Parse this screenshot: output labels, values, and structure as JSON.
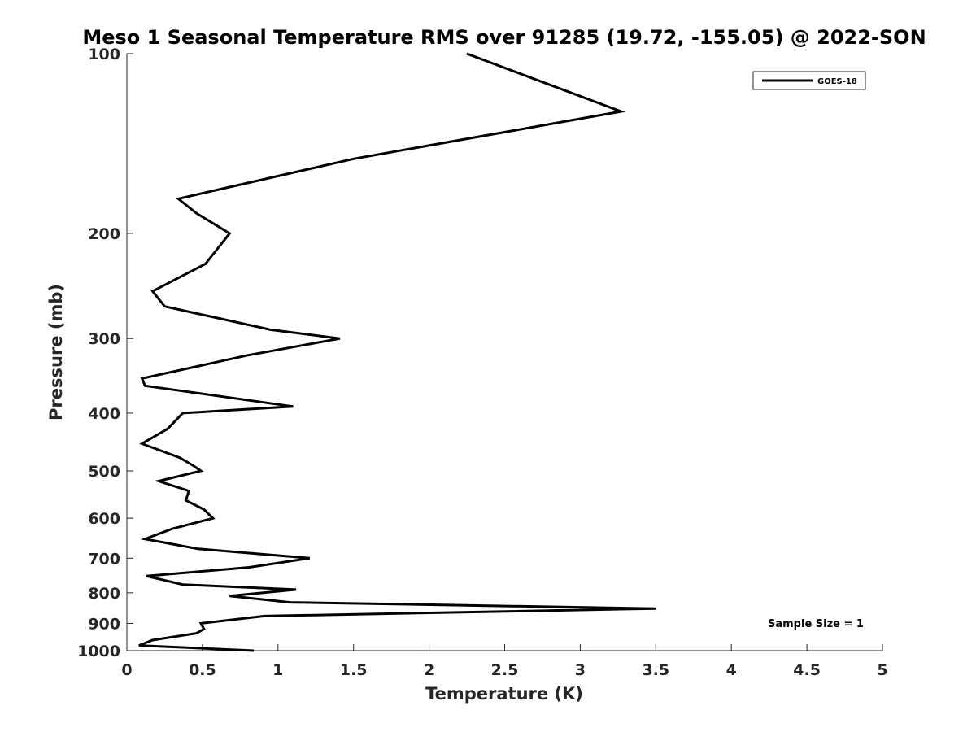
{
  "chart_data": {
    "type": "line",
    "title": "Meso 1 Seasonal Temperature RMS over 91285 (19.72, -155.05) @ 2022-SON",
    "xlabel": "Temperature (K)",
    "ylabel": "Pressure (mb)",
    "xlim": [
      0,
      5
    ],
    "ylim": [
      100,
      1000
    ],
    "y_scale": "log",
    "y_reversed": true,
    "grid": false,
    "legend_position": "top-right",
    "x_ticks": [
      "0",
      "0.5",
      "1",
      "1.5",
      "2",
      "2.5",
      "3",
      "3.5",
      "4",
      "4.5",
      "5"
    ],
    "y_ticks": [
      "100",
      "200",
      "300",
      "400",
      "500",
      "600",
      "700",
      "800",
      "900",
      "1000"
    ],
    "series": [
      {
        "name": "GOES-18",
        "color": "#000000",
        "x": [
          2.25,
          3.27,
          1.5,
          0.34,
          0.46,
          0.68,
          0.52,
          0.17,
          0.25,
          0.95,
          1.41,
          0.8,
          0.1,
          0.12,
          1.1,
          0.37,
          0.27,
          0.1,
          0.35,
          0.44,
          0.49,
          0.21,
          0.41,
          0.39,
          0.51,
          0.57,
          0.3,
          0.12,
          0.47,
          1.21,
          0.81,
          0.13,
          0.37,
          1.12,
          0.68,
          1.08,
          3.5,
          0.91,
          0.49,
          0.51,
          0.46,
          0.17,
          0.08,
          0.84
        ],
        "y": [
          100,
          125,
          150,
          175,
          185,
          200,
          225,
          250,
          265,
          290,
          300,
          320,
          350,
          360,
          390,
          400,
          425,
          450,
          475,
          490,
          500,
          520,
          540,
          560,
          580,
          600,
          625,
          650,
          675,
          700,
          725,
          750,
          775,
          790,
          810,
          830,
          850,
          875,
          900,
          920,
          935,
          960,
          980,
          1000
        ]
      }
    ],
    "annotations": [
      "Sample Size = 1"
    ]
  }
}
